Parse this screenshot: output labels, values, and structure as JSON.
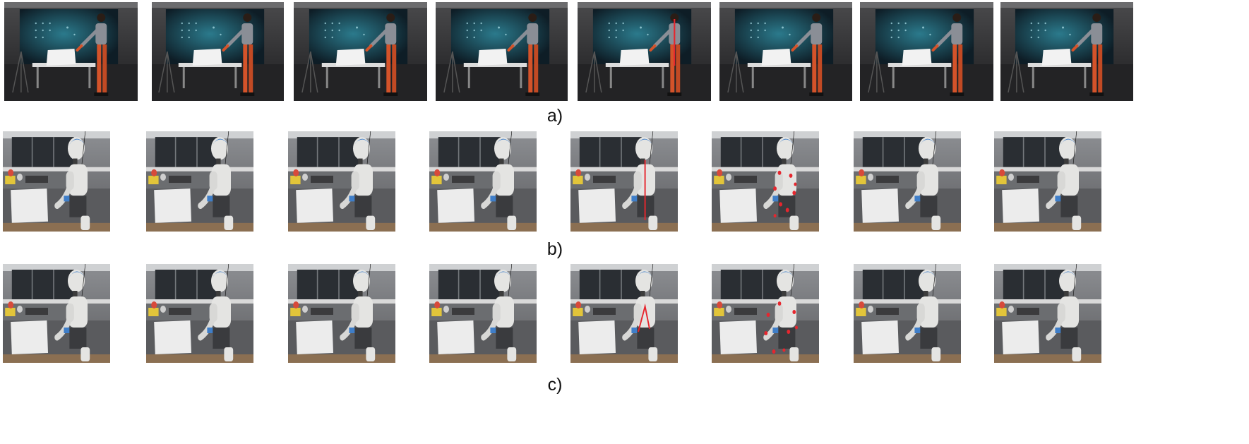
{
  "captions": {
    "a": "a)",
    "b": "b)",
    "c": "c)"
  },
  "rows": [
    {
      "id": "a",
      "scene": "human-demonstration",
      "frames": 8,
      "annotated_frame_index": [
        4
      ]
    },
    {
      "id": "b",
      "scene": "humanoid-robot-seated",
      "frames": 8,
      "annotated_frame_index": [
        4,
        5
      ]
    },
    {
      "id": "c",
      "scene": "humanoid-robot-seated",
      "frames": 8,
      "annotated_frame_index": [
        4,
        5
      ]
    }
  ],
  "colors": {
    "background": "#ffffff",
    "annotation_red": "#e6262e",
    "suit_orange": "#d4532a",
    "robot_white": "#e4e4e2",
    "robot_blue": "#3f7ec8",
    "screen_teal": "#1b4b5c"
  }
}
